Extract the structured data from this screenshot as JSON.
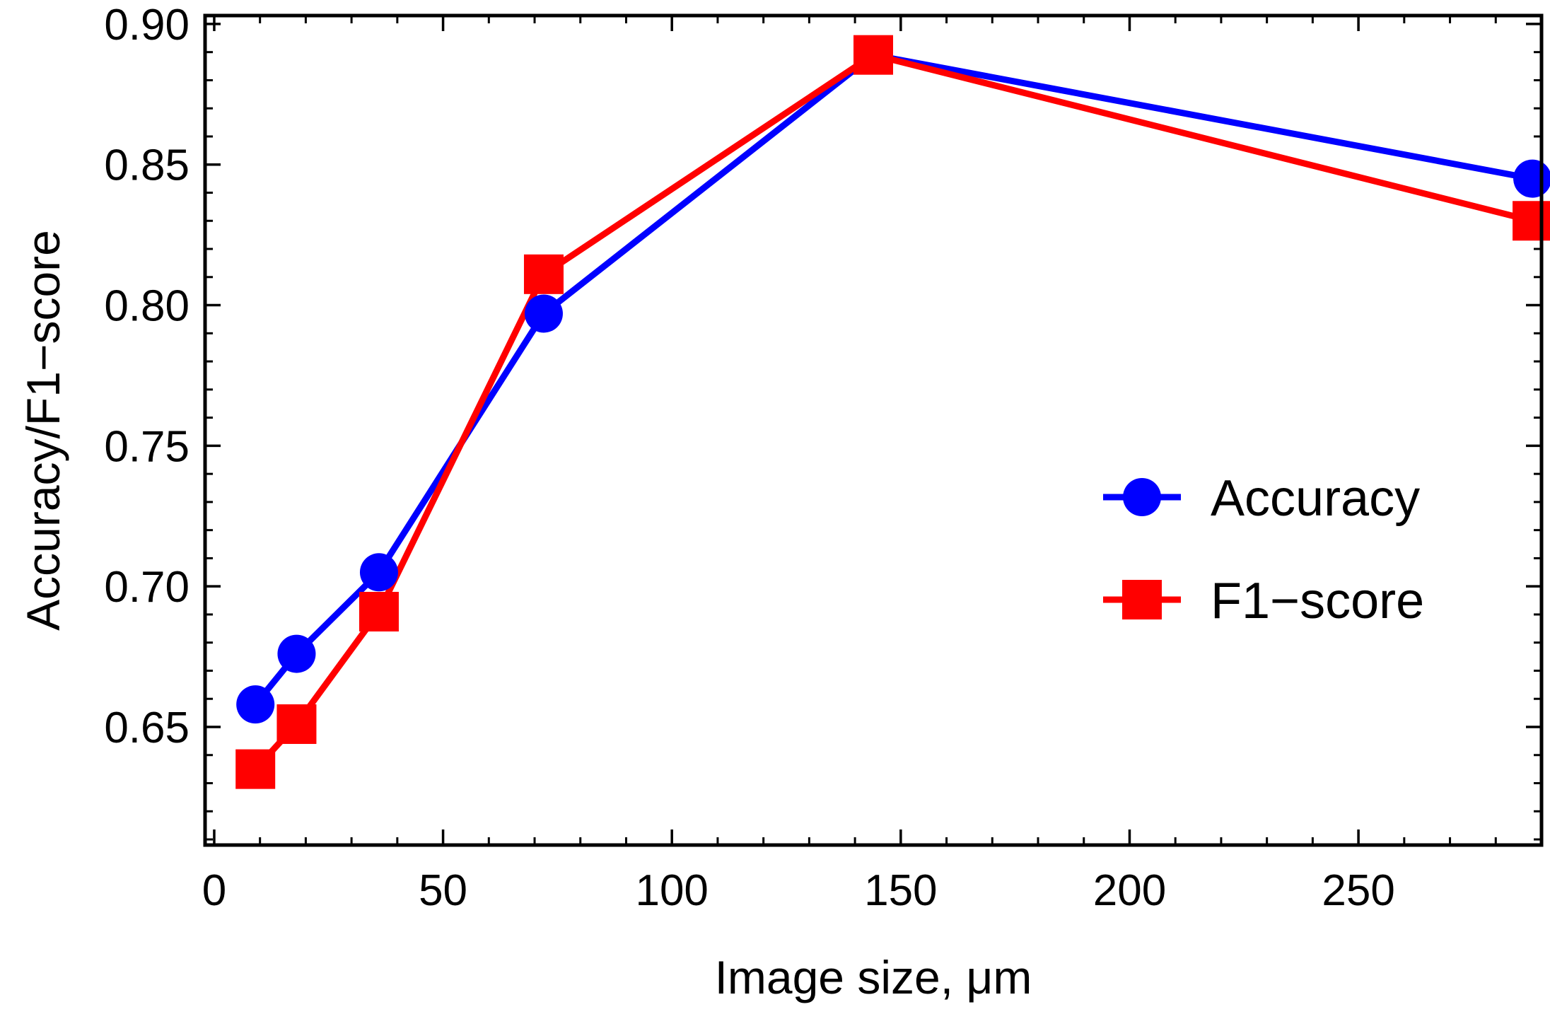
{
  "chart_data": {
    "type": "line",
    "title": "",
    "xlabel": "Image size, μm",
    "ylabel": "Accuracy/F1−score",
    "xlim": [
      -2,
      290
    ],
    "ylim": [
      0.608,
      0.903
    ],
    "x_ticks": [
      0,
      50,
      100,
      150,
      200,
      250
    ],
    "x_tick_labels": [
      "0",
      "50",
      "100",
      "150",
      "200",
      "250"
    ],
    "x_minor_step": 10,
    "y_ticks": [
      0.65,
      0.7,
      0.75,
      0.8,
      0.85,
      0.9
    ],
    "y_tick_labels": [
      "0.65",
      "0.70",
      "0.75",
      "0.80",
      "0.85",
      "0.90"
    ],
    "y_minor_step": 0.01,
    "grid": false,
    "legend_position": "center-right",
    "series": [
      {
        "name": "Accuracy",
        "color": "#0000ff",
        "marker": "circle",
        "x": [
          9,
          18,
          36,
          72,
          144,
          288
        ],
        "y": [
          0.658,
          0.676,
          0.705,
          0.797,
          0.889,
          0.845
        ]
      },
      {
        "name": "F1−score",
        "color": "#ff0000",
        "marker": "square",
        "x": [
          9,
          18,
          36,
          72,
          144,
          288
        ],
        "y": [
          0.635,
          0.651,
          0.691,
          0.811,
          0.889,
          0.83
        ]
      }
    ]
  }
}
